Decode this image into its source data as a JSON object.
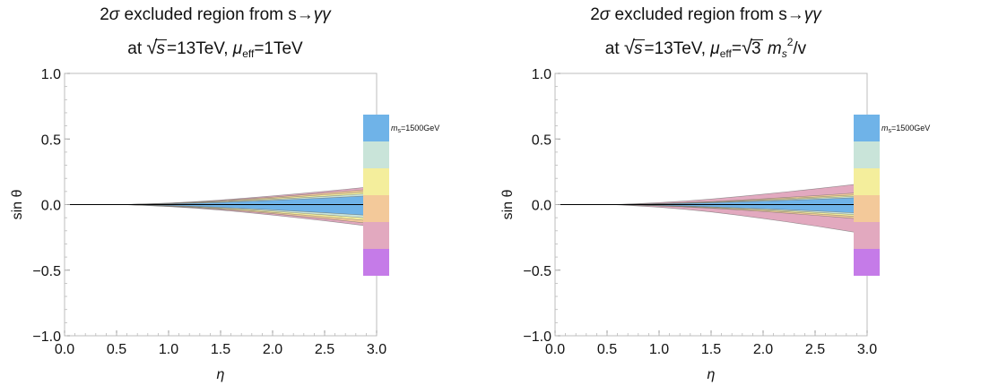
{
  "charts": [
    {
      "title_part1": "2",
      "title_sigma": "σ",
      "title_part2": " excluded region from s→",
      "title_gg": "γγ",
      "title2_prefix": "at ",
      "title2_sqrt_arg": "s",
      "title2_energy": "=13TeV, ",
      "title2_mu": "μ",
      "title2_eff": "eff",
      "title2_eq": "=1TeV",
      "title2_eq_sqrt_arg": "",
      "title2_m": "",
      "title2_m_sub": "",
      "title2_m_sup": "",
      "title2_tail": ""
    },
    {
      "title_part1": "2",
      "title_sigma": "σ",
      "title_part2": " excluded region from s→",
      "title_gg": "γγ",
      "title2_prefix": "at ",
      "title2_sqrt_arg": "s",
      "title2_energy": "=13TeV, ",
      "title2_mu": "μ",
      "title2_eff": "eff",
      "title2_eq": "=",
      "title2_eq_sqrt_arg": "3",
      "title2_m": "m",
      "title2_m_sub": "s",
      "title2_m_sup": "2",
      "title2_tail": "/v"
    }
  ],
  "chart_data": [
    {
      "type": "area",
      "title": "2σ excluded region from s→γγ at √s=13TeV, μeff=1TeV",
      "xlabel": "η",
      "ylabel": "sin θ",
      "xlim": [
        0.0,
        3.0
      ],
      "ylim": [
        -1.0,
        1.0
      ],
      "xticks": [
        "0.0",
        "0.5",
        "1.0",
        "1.5",
        "2.0",
        "2.5",
        "3.0"
      ],
      "yticks": [
        "−1.0",
        "−0.5",
        "0.0",
        "0.5",
        "1.0"
      ],
      "x": [
        0.55,
        0.75,
        1.0,
        1.25,
        1.5,
        1.75,
        2.0,
        2.25,
        2.5,
        2.75,
        3.0
      ],
      "legend_label_prefix": "m",
      "legend_label_sub": "s",
      "legend_label_value": "=1500GeV",
      "legend_colors": [
        "#6fb3e8",
        "#c9e4d9",
        "#f4ee9c",
        "#f3c99a",
        "#e2a9bf",
        "#c57be8"
      ],
      "series": [
        {
          "color": "#e2a9bf",
          "upper": [
            0,
            0.005,
            0.012,
            0.022,
            0.035,
            0.05,
            0.066,
            0.083,
            0.101,
            0.12,
            0.14
          ],
          "lower": [
            0,
            -0.006,
            -0.015,
            -0.027,
            -0.042,
            -0.06,
            -0.08,
            -0.101,
            -0.123,
            -0.147,
            -0.172
          ]
        },
        {
          "color": "#f3c99a",
          "upper": [
            0,
            0.004,
            0.01,
            0.019,
            0.03,
            0.043,
            0.057,
            0.072,
            0.088,
            0.104,
            0.121
          ],
          "lower": [
            0,
            -0.005,
            -0.013,
            -0.023,
            -0.036,
            -0.052,
            -0.069,
            -0.088,
            -0.107,
            -0.128,
            -0.15
          ]
        },
        {
          "color": "#f4ee9c",
          "upper": [
            0,
            0.003,
            0.008,
            0.016,
            0.025,
            0.036,
            0.048,
            0.061,
            0.075,
            0.089,
            0.104
          ],
          "lower": [
            0,
            -0.004,
            -0.011,
            -0.02,
            -0.031,
            -0.045,
            -0.06,
            -0.076,
            -0.093,
            -0.11,
            -0.128
          ]
        },
        {
          "color": "#c9e4d9",
          "upper": [
            0,
            0.003,
            0.007,
            0.013,
            0.021,
            0.03,
            0.04,
            0.051,
            0.063,
            0.075,
            0.088
          ],
          "lower": [
            0,
            -0.003,
            -0.009,
            -0.017,
            -0.026,
            -0.037,
            -0.05,
            -0.064,
            -0.078,
            -0.093,
            -0.108
          ]
        },
        {
          "color": "#6fb3e8",
          "upper": [
            0,
            0.002,
            0.005,
            0.01,
            0.016,
            0.024,
            0.032,
            0.041,
            0.05,
            0.06,
            0.07
          ],
          "lower": [
            0,
            -0.003,
            -0.007,
            -0.013,
            -0.021,
            -0.03,
            -0.04,
            -0.051,
            -0.062,
            -0.074,
            -0.086
          ]
        }
      ]
    },
    {
      "type": "area",
      "title": "2σ excluded region from s→γγ at √s=13TeV, μeff=√3 ms²/v",
      "xlabel": "η",
      "ylabel": "sin θ",
      "xlim": [
        0.0,
        3.0
      ],
      "ylim": [
        -1.0,
        1.0
      ],
      "xticks": [
        "0.0",
        "0.5",
        "1.0",
        "1.5",
        "2.0",
        "2.5",
        "3.0"
      ],
      "yticks": [
        "−1.0",
        "−0.5",
        "0.0",
        "0.5",
        "1.0"
      ],
      "x": [
        0.55,
        0.75,
        1.0,
        1.25,
        1.5,
        1.75,
        2.0,
        2.25,
        2.5,
        2.75,
        3.0
      ],
      "legend_label_prefix": "m",
      "legend_label_sub": "s",
      "legend_label_value": "=1500GeV",
      "legend_colors": [
        "#6fb3e8",
        "#c9e4d9",
        "#f4ee9c",
        "#f3c99a",
        "#e2a9bf",
        "#c57be8"
      ],
      "series": [
        {
          "color": "#e2a9bf",
          "upper": [
            0,
            0.006,
            0.015,
            0.027,
            0.042,
            0.06,
            0.079,
            0.099,
            0.12,
            0.142,
            0.165
          ],
          "lower": [
            0,
            -0.008,
            -0.02,
            -0.036,
            -0.056,
            -0.08,
            -0.106,
            -0.134,
            -0.163,
            -0.194,
            -0.226
          ]
        },
        {
          "color": "#f3c99a",
          "upper": [
            0,
            0.003,
            0.008,
            0.015,
            0.023,
            0.033,
            0.044,
            0.056,
            0.068,
            0.081,
            0.095
          ],
          "lower": [
            0,
            -0.004,
            -0.01,
            -0.018,
            -0.028,
            -0.04,
            -0.053,
            -0.067,
            -0.082,
            -0.098,
            -0.115
          ]
        },
        {
          "color": "#f4ee9c",
          "upper": [
            0,
            0.003,
            0.007,
            0.013,
            0.02,
            0.028,
            0.037,
            0.047,
            0.057,
            0.068,
            0.079
          ],
          "lower": [
            0,
            -0.003,
            -0.009,
            -0.016,
            -0.024,
            -0.034,
            -0.045,
            -0.057,
            -0.07,
            -0.083,
            -0.097
          ]
        },
        {
          "color": "#c9e4d9",
          "upper": [
            0,
            0.002,
            0.006,
            0.011,
            0.017,
            0.024,
            0.032,
            0.04,
            0.049,
            0.058,
            0.068
          ],
          "lower": [
            0,
            -0.003,
            -0.007,
            -0.013,
            -0.02,
            -0.029,
            -0.038,
            -0.048,
            -0.059,
            -0.07,
            -0.082
          ]
        },
        {
          "color": "#6fb3e8",
          "upper": [
            0,
            0.002,
            0.005,
            0.009,
            0.014,
            0.02,
            0.026,
            0.033,
            0.04,
            0.048,
            0.056
          ],
          "lower": [
            0,
            -0.002,
            -0.006,
            -0.011,
            -0.017,
            -0.024,
            -0.031,
            -0.04,
            -0.048,
            -0.058,
            -0.067
          ]
        }
      ]
    }
  ]
}
